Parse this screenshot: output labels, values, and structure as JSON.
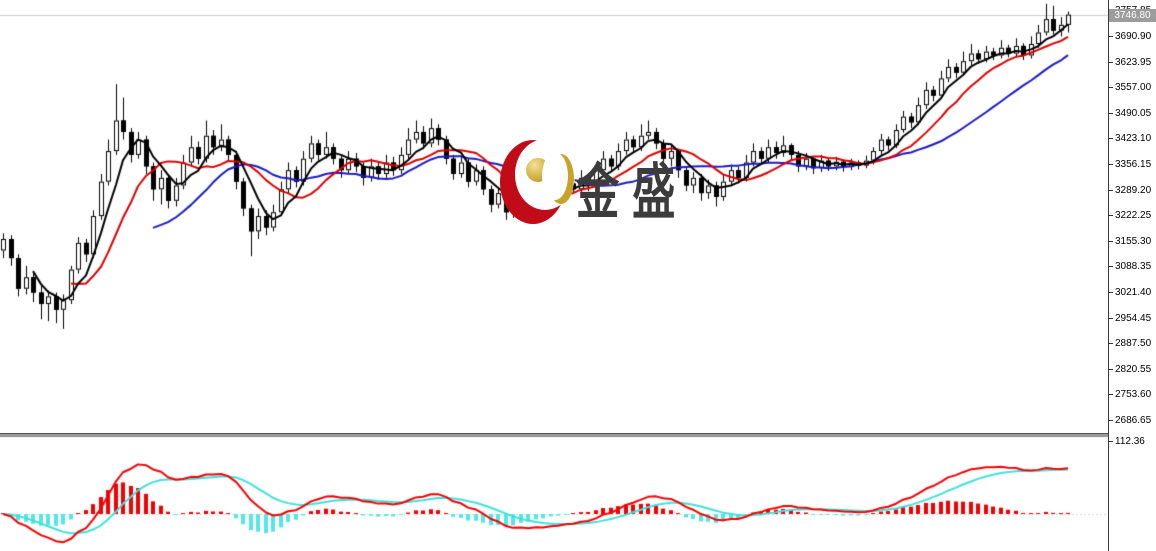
{
  "watermark": {
    "logo_text": "金盛",
    "crescent_color": "#c20b19",
    "ball_color": "#c9a227",
    "text_color": "#3c3c3c"
  },
  "price_axis": {
    "current_price_label": "3746.80",
    "badge_bg": "#9c9c9c",
    "ticks": [
      "3757.85",
      "3690.90",
      "3623.95",
      "3557.00",
      "3490.05",
      "3423.10",
      "3356.15",
      "3289.20",
      "3222.25",
      "3155.30",
      "3088.35",
      "3021.40",
      "2954.45",
      "2887.50",
      "2820.55",
      "2753.60",
      "2686.65"
    ]
  },
  "indicator_axis": {
    "ticks": [
      "112.36"
    ]
  },
  "chart_data": {
    "type": "candlestick",
    "title": "",
    "grid": false,
    "panels": [
      {
        "name": "price",
        "type": "candlestick",
        "current_price": 3746.8,
        "y_axis_ticks": [
          3757.85,
          3690.9,
          3623.95,
          3557.0,
          3490.05,
          3423.1,
          3356.15,
          3289.2,
          3222.25,
          3155.3,
          3088.35,
          3021.4,
          2954.45,
          2887.5,
          2820.55,
          2753.6,
          2686.65
        ],
        "colors": {
          "up_body": "#ffffff",
          "down_body": "#000000",
          "outline": "#000000",
          "current_price_line": "#cccccc"
        },
        "overlays": [
          {
            "name": "ma-fast",
            "type": "sma",
            "period": 5,
            "color": "#000000",
            "width": 2
          },
          {
            "name": "ma-mid",
            "type": "sma",
            "period": 10,
            "color": "#dd0000",
            "width": 2
          },
          {
            "name": "ma-slow",
            "type": "sma",
            "period": 21,
            "color": "#1a1ac8",
            "width": 2
          }
        ],
        "candles": [
          [
            3130,
            3175,
            3110,
            3160
          ],
          [
            3160,
            3170,
            3090,
            3110
          ],
          [
            3110,
            3120,
            3010,
            3030
          ],
          [
            3030,
            3090,
            3015,
            3060
          ],
          [
            3060,
            3070,
            2995,
            3020
          ],
          [
            3020,
            3040,
            2950,
            2990
          ],
          [
            2990,
            3025,
            2945,
            3010
          ],
          [
            3010,
            3020,
            2940,
            2975
          ],
          [
            2975,
            3015,
            2925,
            3000
          ],
          [
            3000,
            3090,
            2990,
            3080
          ],
          [
            3080,
            3165,
            3070,
            3150
          ],
          [
            3150,
            3160,
            3100,
            3120
          ],
          [
            3120,
            3235,
            3110,
            3220
          ],
          [
            3220,
            3330,
            3210,
            3310
          ],
          [
            3310,
            3420,
            3300,
            3390
          ],
          [
            3390,
            3565,
            3380,
            3470
          ],
          [
            3470,
            3530,
            3420,
            3440
          ],
          [
            3440,
            3450,
            3360,
            3380
          ],
          [
            3380,
            3440,
            3370,
            3420
          ],
          [
            3420,
            3430,
            3330,
            3350
          ],
          [
            3350,
            3360,
            3260,
            3290
          ],
          [
            3290,
            3340,
            3250,
            3320
          ],
          [
            3320,
            3330,
            3240,
            3260
          ],
          [
            3260,
            3320,
            3245,
            3300
          ],
          [
            3300,
            3380,
            3290,
            3360
          ],
          [
            3360,
            3430,
            3350,
            3400
          ],
          [
            3400,
            3415,
            3355,
            3370
          ],
          [
            3370,
            3470,
            3360,
            3430
          ],
          [
            3430,
            3445,
            3380,
            3400
          ],
          [
            3400,
            3460,
            3390,
            3420
          ],
          [
            3420,
            3430,
            3365,
            3380
          ],
          [
            3380,
            3390,
            3290,
            3310
          ],
          [
            3310,
            3320,
            3220,
            3240
          ],
          [
            3240,
            3250,
            3115,
            3180
          ],
          [
            3180,
            3240,
            3160,
            3220
          ],
          [
            3220,
            3235,
            3170,
            3190
          ],
          [
            3190,
            3250,
            3180,
            3230
          ],
          [
            3230,
            3310,
            3220,
            3290
          ],
          [
            3290,
            3360,
            3280,
            3340
          ],
          [
            3340,
            3350,
            3295,
            3310
          ],
          [
            3310,
            3390,
            3300,
            3370
          ],
          [
            3370,
            3430,
            3360,
            3410
          ],
          [
            3410,
            3420,
            3365,
            3380
          ],
          [
            3380,
            3440,
            3370,
            3400
          ],
          [
            3400,
            3410,
            3355,
            3370
          ],
          [
            3370,
            3380,
            3320,
            3340
          ],
          [
            3340,
            3390,
            3330,
            3370
          ],
          [
            3370,
            3385,
            3335,
            3350
          ],
          [
            3350,
            3360,
            3300,
            3320
          ],
          [
            3320,
            3370,
            3310,
            3350
          ],
          [
            3350,
            3360,
            3315,
            3330
          ],
          [
            3330,
            3380,
            3320,
            3360
          ],
          [
            3360,
            3375,
            3325,
            3340
          ],
          [
            3340,
            3400,
            3330,
            3380
          ],
          [
            3380,
            3450,
            3370,
            3420
          ],
          [
            3420,
            3470,
            3410,
            3440
          ],
          [
            3440,
            3455,
            3395,
            3410
          ],
          [
            3410,
            3475,
            3400,
            3450
          ],
          [
            3450,
            3460,
            3405,
            3420
          ],
          [
            3420,
            3430,
            3355,
            3370
          ],
          [
            3370,
            3380,
            3315,
            3330
          ],
          [
            3330,
            3375,
            3320,
            3360
          ],
          [
            3360,
            3370,
            3295,
            3310
          ],
          [
            3310,
            3355,
            3300,
            3340
          ],
          [
            3340,
            3350,
            3275,
            3290
          ],
          [
            3290,
            3300,
            3230,
            3250
          ],
          [
            3250,
            3295,
            3240,
            3280
          ],
          [
            3280,
            3290,
            3210,
            3230
          ],
          [
            3230,
            3275,
            3215,
            3260
          ],
          [
            3260,
            3305,
            3250,
            3290
          ],
          [
            3290,
            3300,
            3255,
            3270
          ],
          [
            3270,
            3310,
            3260,
            3295
          ],
          [
            3295,
            3305,
            3260,
            3275
          ],
          [
            3275,
            3315,
            3265,
            3300
          ],
          [
            3300,
            3310,
            3270,
            3285
          ],
          [
            3285,
            3320,
            3275,
            3305
          ],
          [
            3305,
            3315,
            3280,
            3290
          ],
          [
            3290,
            3340,
            3280,
            3320
          ],
          [
            3320,
            3330,
            3285,
            3300
          ],
          [
            3300,
            3360,
            3290,
            3340
          ],
          [
            3340,
            3390,
            3330,
            3370
          ],
          [
            3370,
            3380,
            3335,
            3350
          ],
          [
            3350,
            3410,
            3340,
            3390
          ],
          [
            3390,
            3440,
            3380,
            3420
          ],
          [
            3420,
            3430,
            3385,
            3400
          ],
          [
            3400,
            3460,
            3390,
            3430
          ],
          [
            3430,
            3470,
            3420,
            3440
          ],
          [
            3440,
            3450,
            3395,
            3410
          ],
          [
            3410,
            3420,
            3355,
            3370
          ],
          [
            3370,
            3405,
            3350,
            3390
          ],
          [
            3390,
            3395,
            3320,
            3340
          ],
          [
            3340,
            3350,
            3285,
            3300
          ],
          [
            3300,
            3335,
            3280,
            3320
          ],
          [
            3320,
            3330,
            3260,
            3280
          ],
          [
            3280,
            3315,
            3265,
            3300
          ],
          [
            3300,
            3310,
            3245,
            3270
          ],
          [
            3270,
            3330,
            3260,
            3310
          ],
          [
            3310,
            3355,
            3300,
            3340
          ],
          [
            3340,
            3350,
            3305,
            3320
          ],
          [
            3320,
            3380,
            3310,
            3360
          ],
          [
            3360,
            3410,
            3350,
            3390
          ],
          [
            3390,
            3400,
            3355,
            3370
          ],
          [
            3370,
            3420,
            3360,
            3400
          ],
          [
            3400,
            3415,
            3370,
            3385
          ],
          [
            3385,
            3430,
            3375,
            3405
          ],
          [
            3405,
            3410,
            3365,
            3380
          ],
          [
            3380,
            3390,
            3335,
            3350
          ],
          [
            3350,
            3385,
            3340,
            3370
          ],
          [
            3370,
            3375,
            3330,
            3345
          ],
          [
            3345,
            3380,
            3335,
            3365
          ],
          [
            3365,
            3372,
            3338,
            3350
          ],
          [
            3350,
            3375,
            3340,
            3362
          ],
          [
            3362,
            3368,
            3336,
            3348
          ],
          [
            3348,
            3370,
            3340,
            3360
          ],
          [
            3360,
            3366,
            3342,
            3352
          ],
          [
            3352,
            3378,
            3345,
            3365
          ],
          [
            3365,
            3400,
            3355,
            3390
          ],
          [
            3390,
            3435,
            3380,
            3420
          ],
          [
            3420,
            3428,
            3392,
            3405
          ],
          [
            3405,
            3460,
            3398,
            3445
          ],
          [
            3445,
            3495,
            3438,
            3480
          ],
          [
            3480,
            3490,
            3450,
            3465
          ],
          [
            3465,
            3530,
            3458,
            3510
          ],
          [
            3510,
            3570,
            3500,
            3550
          ],
          [
            3550,
            3560,
            3520,
            3535
          ],
          [
            3535,
            3600,
            3528,
            3580
          ],
          [
            3580,
            3630,
            3570,
            3610
          ],
          [
            3610,
            3620,
            3580,
            3595
          ],
          [
            3595,
            3650,
            3588,
            3625
          ],
          [
            3625,
            3670,
            3615,
            3645
          ],
          [
            3645,
            3655,
            3618,
            3630
          ],
          [
            3630,
            3665,
            3622,
            3650
          ],
          [
            3650,
            3660,
            3628,
            3640
          ],
          [
            3640,
            3680,
            3632,
            3660
          ],
          [
            3660,
            3668,
            3635,
            3645
          ],
          [
            3645,
            3685,
            3638,
            3665
          ],
          [
            3665,
            3672,
            3628,
            3640
          ],
          [
            3640,
            3690,
            3632,
            3670
          ],
          [
            3670,
            3720,
            3660,
            3700
          ],
          [
            3700,
            3775,
            3692,
            3735
          ],
          [
            3735,
            3770,
            3695,
            3705
          ],
          [
            3705,
            3740,
            3690,
            3720
          ],
          [
            3720,
            3755,
            3700,
            3746.8
          ]
        ]
      },
      {
        "name": "macd",
        "type": "macd",
        "fast": 12,
        "slow": 26,
        "signal": 9,
        "y_axis_max": 112.36,
        "colors": {
          "macd_line": "#f50000",
          "signal_line": "#3fe0e0",
          "hist_up": "#f50000",
          "hist_down": "#55e6e6",
          "zero_line": "#d8d8d8"
        }
      }
    ]
  }
}
